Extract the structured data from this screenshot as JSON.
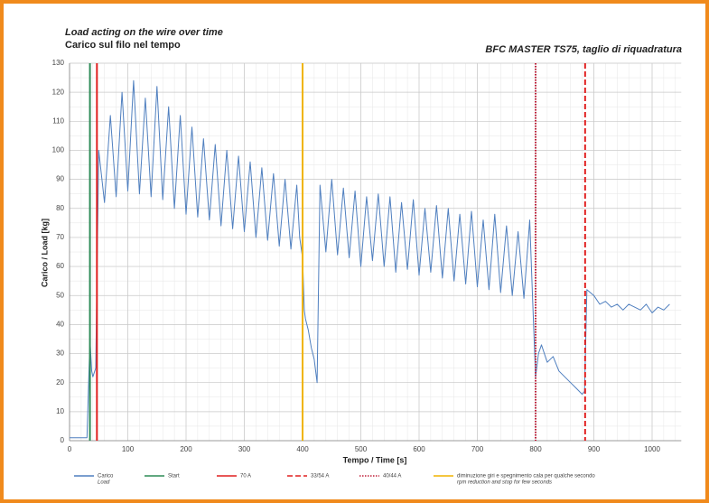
{
  "chart_data": {
    "type": "line",
    "title": "Load acting on the wire over time",
    "subtitle": "Carico sul filo nel tempo",
    "machine": "BFC MASTER TS75, taglio di riquadratura",
    "x_label": "Tempo / Time [s]",
    "y_label": "Carico / Load [kg]",
    "xlim": [
      0,
      1050
    ],
    "ylim": [
      0,
      130
    ],
    "xticks": [
      0,
      100,
      200,
      300,
      400,
      500,
      600,
      700,
      800,
      900,
      1000
    ],
    "yticks": [
      0,
      10,
      20,
      30,
      40,
      50,
      60,
      70,
      80,
      90,
      100,
      110,
      120,
      130
    ],
    "grid": true,
    "series": [
      {
        "name": "Carico",
        "name_en": "Load",
        "color": "#4f7fbf",
        "x": [
          0,
          10,
          20,
          30,
          35,
          38,
          40,
          45,
          50,
          60,
          70,
          80,
          90,
          100,
          110,
          120,
          130,
          140,
          150,
          160,
          170,
          180,
          190,
          200,
          210,
          220,
          230,
          240,
          250,
          260,
          270,
          280,
          290,
          300,
          310,
          320,
          330,
          340,
          350,
          360,
          370,
          380,
          390,
          395,
          400,
          403,
          405,
          410,
          415,
          420,
          425,
          430,
          440,
          450,
          460,
          470,
          480,
          490,
          500,
          510,
          520,
          530,
          540,
          550,
          560,
          570,
          580,
          590,
          600,
          610,
          620,
          630,
          640,
          650,
          660,
          670,
          680,
          690,
          700,
          710,
          720,
          730,
          740,
          750,
          760,
          770,
          780,
          790,
          795,
          800,
          805,
          810,
          820,
          830,
          840,
          850,
          860,
          870,
          880,
          884,
          888,
          900,
          910,
          920,
          930,
          940,
          950,
          960,
          970,
          980,
          990,
          1000,
          1010,
          1020,
          1030
        ],
        "values": [
          1,
          1,
          1,
          1,
          35,
          24,
          22,
          25,
          100,
          82,
          112,
          84,
          120,
          86,
          124,
          85,
          118,
          84,
          122,
          83,
          115,
          80,
          112,
          78,
          108,
          77,
          104,
          76,
          102,
          74,
          100,
          73,
          98,
          72,
          96,
          70,
          94,
          69,
          92,
          67,
          90,
          66,
          88,
          70,
          63,
          45,
          42,
          38,
          32,
          28,
          20,
          88,
          65,
          90,
          64,
          87,
          63,
          86,
          60,
          84,
          62,
          85,
          60,
          84,
          58,
          82,
          59,
          83,
          57,
          80,
          58,
          81,
          56,
          80,
          55,
          78,
          54,
          79,
          53,
          76,
          52,
          78,
          51,
          74,
          50,
          72,
          49,
          76,
          48,
          22,
          30,
          33,
          27,
          29,
          24,
          22,
          20,
          18,
          16,
          17,
          52,
          50,
          47,
          48,
          46,
          47,
          45,
          47,
          46,
          45,
          47,
          44,
          46,
          45,
          47
        ]
      }
    ],
    "vlines": [
      {
        "name": "Start",
        "x": 35,
        "color": "#2e8b57",
        "style": "solid"
      },
      {
        "name": "70 A",
        "x": 47,
        "color": "#e02020",
        "style": "solid"
      },
      {
        "name": "33/54 A",
        "x": 885,
        "color": "#e02020",
        "style": "dashed"
      },
      {
        "name": "40/44 A",
        "x": 800,
        "color": "#c0203a",
        "style": "dotted"
      },
      {
        "name": "diminuzione giri e spegnimento cala per qualche secondo",
        "name_en": "rpm reduction and stop for few seconds",
        "x": 400,
        "color": "#f0b400",
        "style": "solid"
      }
    ]
  }
}
